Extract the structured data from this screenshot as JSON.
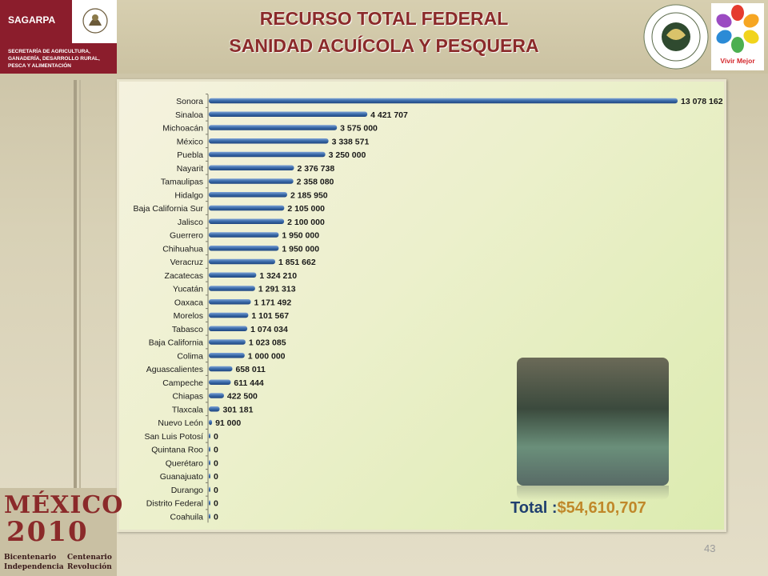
{
  "header": {
    "org_label": "SAGARPA",
    "org_full": "SECRETARÍA DE AGRICULTURA, GANADERÍA, DESARROLLO RURAL, PESCA Y ALIMENTACIÓN",
    "title_line1": "RECURSO TOTAL FEDERAL",
    "title_line2": "SANIDAD ACUÍCOLA Y PESQUERA",
    "vivir_mejor": "Vivir Mejor"
  },
  "footer": {
    "mexico": "MÉXICO",
    "year": "2010",
    "left_line1": "Bicentenario",
    "left_line2": "Independencia",
    "right_line1": "Centenario",
    "right_line2": "Revolución",
    "page_number": "43"
  },
  "total": {
    "label": "Total :",
    "value": "$54,610,707"
  },
  "colors": {
    "bar": "#3a6aa8",
    "title": "#8b2a2a",
    "total_label": "#1f3f6f",
    "total_value": "#c0882a"
  },
  "chart_data": {
    "type": "bar",
    "orientation": "horizontal",
    "title": "",
    "xlabel": "",
    "ylabel": "",
    "categories": [
      "Sonora",
      "Sinaloa",
      "Michoacán",
      "México",
      "Puebla",
      "Nayarit",
      "Tamaulipas",
      "Hidalgo",
      "Baja California Sur",
      "Jalisco",
      "Guerrero",
      "Chihuahua",
      "Veracruz",
      "Zacatecas",
      "Yucatán",
      "Oaxaca",
      "Morelos",
      "Tabasco",
      "Baja California",
      "Colima",
      "Aguascalientes",
      "Campeche",
      "Chiapas",
      "Tlaxcala",
      "Nuevo León",
      "San Luis Potosí",
      "Quintana Roo",
      "Querétaro",
      "Guanajuato",
      "Durango",
      "Distrito Federal",
      "Coahuila"
    ],
    "values": [
      13078162,
      4421707,
      3575000,
      3338571,
      3250000,
      2376738,
      2358080,
      2185950,
      2105000,
      2100000,
      1950000,
      1950000,
      1851662,
      1324210,
      1291313,
      1171492,
      1101567,
      1074034,
      1023085,
      1000000,
      658011,
      611444,
      422500,
      301181,
      91000,
      0,
      0,
      0,
      0,
      0,
      0,
      0
    ],
    "labels": [
      "13 078 162",
      "4 421 707",
      "3 575 000",
      "3 338 571",
      "3 250 000",
      "2 376 738",
      "2 358 080",
      "2 185 950",
      "2 105 000",
      "2 100 000",
      "1 950 000",
      "1 950 000",
      "1 851 662",
      "1 324 210",
      "1 291 313",
      "1 171 492",
      "1 101 567",
      "1 074 034",
      "1 023 085",
      "1 000 000",
      "658 011",
      "611 444",
      "422 500",
      "301 181",
      "91 000",
      "0",
      "0",
      "0",
      "0",
      "0",
      "0",
      "0"
    ],
    "xlim": [
      0,
      13078162
    ],
    "grid": false,
    "legend": "none"
  }
}
